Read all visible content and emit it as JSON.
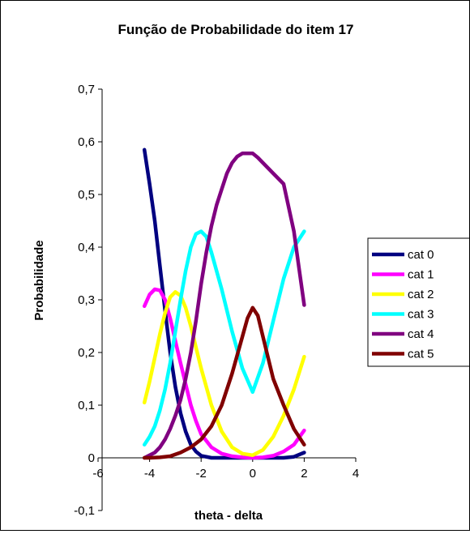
{
  "chart_data": {
    "type": "line",
    "title": "Função de Probabilidade do item 17",
    "xlabel": "theta - delta",
    "ylabel": "Probabilidade",
    "xlim": [
      -6,
      4
    ],
    "ylim": [
      -0.1,
      0.7
    ],
    "xticks": [
      "-6",
      "-4",
      "-2",
      "0",
      "2",
      "4"
    ],
    "yticks": [
      "-0,1",
      "0",
      "0,1",
      "0,2",
      "0,3",
      "0,4",
      "0,5",
      "0,6",
      "0,7"
    ],
    "grid": false,
    "legend_position": "right",
    "series": [
      {
        "name": "cat 0",
        "color": "#000080",
        "x": [
          -4.2,
          -4.0,
          -3.8,
          -3.6,
          -3.4,
          -3.2,
          -3.0,
          -2.8,
          -2.6,
          -2.4,
          -2.2,
          -2.0,
          -1.6,
          -1.2,
          -0.8,
          -0.4,
          0.0,
          0.4,
          0.8,
          1.2,
          1.6,
          2.0
        ],
        "values": [
          0.585,
          0.52,
          0.45,
          0.365,
          0.28,
          0.2,
          0.135,
          0.085,
          0.05,
          0.025,
          0.012,
          0.004,
          0,
          0,
          0,
          0,
          0,
          0,
          0,
          0,
          0.002,
          0.01
        ]
      },
      {
        "name": "cat 1",
        "color": "#FF00FF",
        "x": [
          -4.2,
          -4.0,
          -3.8,
          -3.6,
          -3.4,
          -3.2,
          -3.0,
          -2.8,
          -2.6,
          -2.4,
          -2.2,
          -2.0,
          -1.6,
          -1.2,
          -0.8,
          -0.4,
          0.0,
          0.4,
          0.8,
          1.2,
          1.6,
          2.0
        ],
        "values": [
          0.288,
          0.31,
          0.32,
          0.318,
          0.3,
          0.265,
          0.222,
          0.18,
          0.14,
          0.1,
          0.07,
          0.045,
          0.02,
          0.008,
          0.003,
          0.001,
          0,
          0.001,
          0.004,
          0.012,
          0.025,
          0.052
        ]
      },
      {
        "name": "cat 2",
        "color": "#FFFF00",
        "x": [
          -4.2,
          -4.0,
          -3.8,
          -3.6,
          -3.4,
          -3.2,
          -3.0,
          -2.8,
          -2.6,
          -2.4,
          -2.2,
          -2.0,
          -1.6,
          -1.2,
          -0.8,
          -0.4,
          0.0,
          0.4,
          0.8,
          1.2,
          1.6,
          2.0
        ],
        "values": [
          0.105,
          0.145,
          0.19,
          0.235,
          0.275,
          0.305,
          0.315,
          0.308,
          0.285,
          0.25,
          0.21,
          0.17,
          0.1,
          0.05,
          0.02,
          0.008,
          0.005,
          0.015,
          0.04,
          0.08,
          0.13,
          0.192
        ]
      },
      {
        "name": "cat 3",
        "color": "#00FFFF",
        "x": [
          -4.2,
          -4.0,
          -3.8,
          -3.6,
          -3.4,
          -3.2,
          -3.0,
          -2.8,
          -2.6,
          -2.4,
          -2.2,
          -2.0,
          -1.8,
          -1.6,
          -1.2,
          -0.8,
          -0.4,
          0.0,
          0.4,
          0.8,
          1.2,
          1.6,
          2.0
        ],
        "values": [
          0.025,
          0.04,
          0.06,
          0.09,
          0.13,
          0.18,
          0.24,
          0.3,
          0.355,
          0.4,
          0.425,
          0.43,
          0.42,
          0.39,
          0.32,
          0.24,
          0.17,
          0.125,
          0.18,
          0.26,
          0.34,
          0.4,
          0.43
        ]
      },
      {
        "name": "cat 4",
        "color": "#800080",
        "x": [
          -4.2,
          -4.0,
          -3.8,
          -3.6,
          -3.4,
          -3.2,
          -3.0,
          -2.8,
          -2.6,
          -2.4,
          -2.2,
          -2.0,
          -1.8,
          -1.6,
          -1.4,
          -1.2,
          -1.0,
          -0.8,
          -0.6,
          -0.4,
          -0.2,
          0.0,
          0.2,
          0.4,
          0.8,
          1.2,
          1.6,
          1.8,
          2.0
        ],
        "values": [
          0.0,
          0.005,
          0.01,
          0.02,
          0.035,
          0.055,
          0.08,
          0.11,
          0.15,
          0.2,
          0.26,
          0.33,
          0.39,
          0.44,
          0.48,
          0.51,
          0.54,
          0.56,
          0.572,
          0.578,
          0.578,
          0.578,
          0.57,
          0.56,
          0.54,
          0.52,
          0.43,
          0.36,
          0.29
        ]
      },
      {
        "name": "cat 5",
        "color": "#800000",
        "x": [
          -4.2,
          -4.0,
          -3.6,
          -3.2,
          -2.8,
          -2.4,
          -2.0,
          -1.6,
          -1.2,
          -0.8,
          -0.4,
          -0.2,
          0.0,
          0.2,
          0.4,
          0.8,
          1.2,
          1.6,
          2.0
        ],
        "values": [
          0,
          0,
          0.001,
          0.003,
          0.01,
          0.02,
          0.035,
          0.06,
          0.1,
          0.16,
          0.23,
          0.265,
          0.285,
          0.27,
          0.23,
          0.15,
          0.1,
          0.055,
          0.025
        ]
      }
    ]
  }
}
